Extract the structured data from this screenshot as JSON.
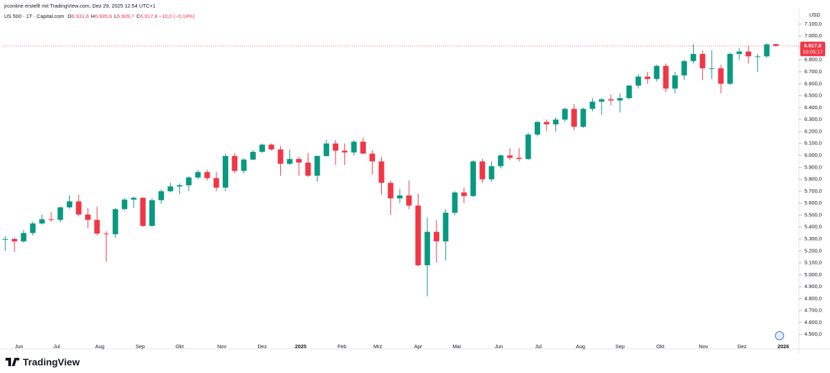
{
  "attribution": "jrconline erstellt mit TradingView.com, Dez 29, 2025 12:54 UTC+1",
  "footer_logo": "TradingView",
  "chart_data": {
    "type": "candlestick",
    "title": "US 500 · 1T · Capital.com",
    "ohlc_labels": [
      {
        "prefix": "O",
        "value": "6.931,6"
      },
      {
        "prefix": "H",
        "value": "6.935,9"
      },
      {
        "prefix": "L",
        "value": "6.909,7"
      },
      {
        "prefix": "C",
        "value": "6.917,8"
      }
    ],
    "change_label": "−10,0 (−0,14%)",
    "currency": "USD",
    "last_price_label": "6.917,8",
    "countdown": "10:05:17",
    "up_color": "#089981",
    "down_color": "#f23645",
    "categories": [
      null,
      null,
      null,
      null,
      null,
      null,
      null,
      null,
      null,
      null,
      null,
      null,
      null,
      null,
      null,
      null,
      null,
      null,
      null,
      null,
      null,
      null,
      null,
      null,
      null,
      null,
      null,
      null,
      null,
      null,
      null,
      null,
      null,
      null,
      null,
      null,
      null,
      null,
      null,
      null,
      null,
      null,
      null,
      null,
      null,
      null,
      null,
      null,
      null,
      null,
      null,
      null,
      null,
      null,
      null,
      null,
      null,
      null,
      null,
      null,
      null,
      null,
      null,
      null,
      null,
      null,
      null,
      null,
      null,
      null,
      null,
      null,
      null,
      null,
      null,
      null,
      null,
      null,
      null,
      null,
      null,
      null,
      null,
      null,
      null
    ],
    "open": [
      5300,
      5300,
      5280,
      5350,
      5430,
      5465,
      5460,
      5565,
      5615,
      5505,
      5460,
      5345,
      5340,
      5550,
      5630,
      5645,
      5410,
      5625,
      5700,
      5740,
      5750,
      5815,
      5860,
      5810,
      5730,
      5995,
      5870,
      5965,
      6030,
      6090,
      6050,
      5930,
      5970,
      5940,
      5830,
      5995,
      6100,
      6040,
      6025,
      6115,
      6015,
      5950,
      5770,
      5640,
      5665,
      5580,
      5080,
      5360,
      5280,
      5520,
      5690,
      5660,
      5950,
      5800,
      5910,
      6000,
      5980,
      5970,
      6175,
      6280,
      6260,
      6300,
      6390,
      6240,
      6390,
      6450,
      6470,
      6460,
      6480,
      6585,
      6660,
      6640,
      6750,
      6560,
      6670,
      6790,
      6850,
      6730,
      6730,
      6600,
      6850,
      6870,
      6830,
      6830,
      6931.6
    ],
    "high": [
      5325,
      5310,
      5375,
      5445,
      5505,
      5525,
      5570,
      5665,
      5670,
      5560,
      5570,
      5365,
      5560,
      5645,
      5655,
      5650,
      5640,
      5715,
      5770,
      5765,
      5825,
      5880,
      5880,
      5860,
      6015,
      6020,
      5975,
      6045,
      6100,
      6100,
      6080,
      6050,
      5990,
      6020,
      6000,
      6130,
      6130,
      6100,
      6130,
      6150,
      6045,
      5990,
      5790,
      5720,
      5790,
      5680,
      5480,
      5460,
      5550,
      5700,
      5730,
      5960,
      5970,
      5950,
      6010,
      6060,
      6060,
      6190,
      6290,
      6300,
      6320,
      6400,
      6430,
      6400,
      6480,
      6480,
      6510,
      6520,
      6590,
      6680,
      6700,
      6760,
      6770,
      6700,
      6800,
      6930,
      6880,
      6880,
      6760,
      6860,
      6900,
      6920,
      6850,
      6940,
      6935.9
    ],
    "low": [
      5200,
      5190,
      5270,
      5330,
      5420,
      5445,
      5440,
      5555,
      5490,
      5390,
      5330,
      5110,
      5310,
      5540,
      5560,
      5400,
      5400,
      5595,
      5690,
      5675,
      5700,
      5800,
      5790,
      5700,
      5700,
      5850,
      5850,
      5960,
      6020,
      6040,
      5830,
      5920,
      5830,
      5820,
      5780,
      5990,
      5920,
      5920,
      6000,
      6010,
      5840,
      5670,
      5500,
      5600,
      5550,
      5070,
      4820,
      5100,
      5120,
      5500,
      5600,
      5650,
      5770,
      5780,
      5890,
      5960,
      5950,
      5960,
      6160,
      6200,
      6200,
      6280,
      6210,
      6230,
      6370,
      6340,
      6420,
      6360,
      6470,
      6560,
      6600,
      6620,
      6530,
      6520,
      6630,
      6770,
      6630,
      6640,
      6520,
      6590,
      6800,
      6770,
      6700,
      6820,
      6909.7
    ],
    "close": [
      5300,
      5280,
      5350,
      5430,
      5465,
      5460,
      5565,
      5615,
      5505,
      5460,
      5345,
      5340,
      5550,
      5630,
      5645,
      5410,
      5625,
      5700,
      5740,
      5750,
      5815,
      5860,
      5810,
      5730,
      5995,
      5870,
      5965,
      6030,
      6090,
      6050,
      5930,
      5970,
      5940,
      5830,
      5995,
      6100,
      6040,
      6025,
      6115,
      6015,
      5950,
      5770,
      5640,
      5665,
      5580,
      5080,
      5360,
      5280,
      5520,
      5690,
      5660,
      5950,
      5800,
      5910,
      6000,
      5980,
      5970,
      6175,
      6280,
      6260,
      6300,
      6390,
      6240,
      6390,
      6450,
      6470,
      6460,
      6480,
      6585,
      6660,
      6640,
      6750,
      6560,
      6670,
      6790,
      6850,
      6730,
      6730,
      6600,
      6850,
      6870,
      6830,
      6830,
      6930,
      6917.8
    ],
    "xlim": [
      -0.2,
      86.5
    ],
    "xticks": [
      {
        "value": 1.5,
        "label": "Jun"
      },
      {
        "value": 5.6,
        "label": "Jul"
      },
      {
        "value": 10.3,
        "label": "Aug"
      },
      {
        "value": 14.7,
        "label": "Sep"
      },
      {
        "value": 19.0,
        "label": "Okt"
      },
      {
        "value": 23.6,
        "label": "Nov"
      },
      {
        "value": 28.0,
        "label": "Dez"
      },
      {
        "value": 32.2,
        "label": "2025"
      },
      {
        "value": 36.7,
        "label": "Feb"
      },
      {
        "value": 40.6,
        "label": "Mrz"
      },
      {
        "value": 45.0,
        "label": "Apr"
      },
      {
        "value": 49.2,
        "label": "Mai"
      },
      {
        "value": 53.8,
        "label": "Jun"
      },
      {
        "value": 58.1,
        "label": "Jul"
      },
      {
        "value": 62.7,
        "label": "Aug"
      },
      {
        "value": 67.0,
        "label": "Sep"
      },
      {
        "value": 71.4,
        "label": "Okt"
      },
      {
        "value": 76.1,
        "label": "Nov"
      },
      {
        "value": 80.3,
        "label": "Dez"
      },
      {
        "value": 84.8,
        "label": "2026"
      }
    ],
    "ylim": [
      4380,
      7215
    ],
    "yticks": [
      {
        "value": 4500,
        "label": "4.500,0"
      },
      {
        "value": 4600,
        "label": "4.600,0"
      },
      {
        "value": 4700,
        "label": "4.700,0"
      },
      {
        "value": 4800,
        "label": "4.800,0"
      },
      {
        "value": 4900,
        "label": "4.900,0"
      },
      {
        "value": 5000,
        "label": "5.000,0"
      },
      {
        "value": 5100,
        "label": "5.100,0"
      },
      {
        "value": 5200,
        "label": "5.200,0"
      },
      {
        "value": 5300,
        "label": "5.300,0"
      },
      {
        "value": 5400,
        "label": "5.400,0"
      },
      {
        "value": 5500,
        "label": "5.500,0"
      },
      {
        "value": 5600,
        "label": "5.600,0"
      },
      {
        "value": 5700,
        "label": "5.700,0"
      },
      {
        "value": 5800,
        "label": "5.800,0"
      },
      {
        "value": 5900,
        "label": "5.900,0"
      },
      {
        "value": 6000,
        "label": "6.000,0"
      },
      {
        "value": 6100,
        "label": "6.100,0"
      },
      {
        "value": 6200,
        "label": "6.200,0"
      },
      {
        "value": 6300,
        "label": "6.300,0"
      },
      {
        "value": 6400,
        "label": "6.400,0"
      },
      {
        "value": 6500,
        "label": "6.500,0"
      },
      {
        "value": 6600,
        "label": "6.600,0"
      },
      {
        "value": 6700,
        "label": "6.700,0"
      },
      {
        "value": 6800,
        "label": "6.800,0"
      },
      {
        "value": 6900,
        "label": "6.900,0"
      },
      {
        "value": 7000,
        "label": "7.000,0"
      },
      {
        "value": 7100,
        "label": "7.100,0"
      }
    ],
    "grid": false
  }
}
